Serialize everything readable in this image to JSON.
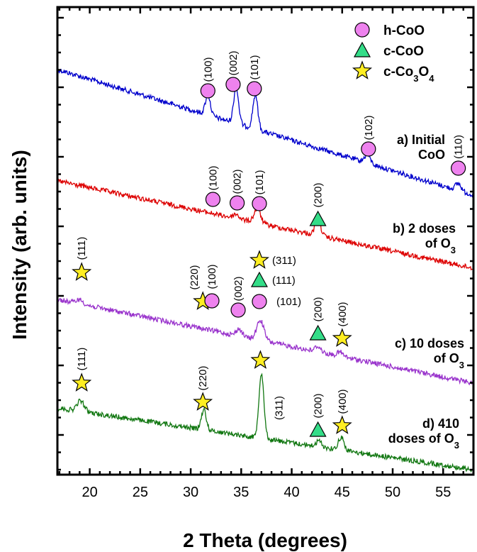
{
  "chart_data": {
    "type": "line",
    "title": "",
    "xlabel": "2 Theta (degrees)",
    "ylabel": "Intensity (arb. units)",
    "xlim": [
      16.8,
      58
    ],
    "x_ticks": [
      20,
      25,
      30,
      35,
      40,
      45,
      50,
      55
    ],
    "y_ticks_visible": false,
    "legend": {
      "position": "top-right",
      "entries": [
        {
          "name": "h-CoO",
          "marker": "circle",
          "color": "#ee82ee"
        },
        {
          "name": "c-CoO",
          "marker": "triangle",
          "color": "#33dd88"
        },
        {
          "name": "c-Co3O4",
          "marker": "star",
          "color": "#ffee22"
        }
      ]
    },
    "series": [
      {
        "name": "a) Initial CoO",
        "label_lines": [
          "a) Initial",
          "CoO"
        ],
        "color": "#0000cc",
        "start_intensity": 98,
        "end_intensity": 275,
        "peaks": [
          {
            "x": 31.7,
            "height": 28,
            "width": 0.35
          },
          {
            "x": 34.5,
            "height": 50,
            "width": 0.35
          },
          {
            "x": 36.4,
            "height": 48,
            "width": 0.35
          },
          {
            "x": 47.5,
            "height": 12,
            "width": 0.4
          },
          {
            "x": 56.5,
            "height": 10,
            "width": 0.4
          }
        ],
        "markers": [
          {
            "type": "circle",
            "x": 31.7,
            "hkl": "(100)"
          },
          {
            "type": "circle",
            "x": 34.2,
            "hkl": "(002)"
          },
          {
            "type": "circle",
            "x": 36.3,
            "hkl": "(101)"
          },
          {
            "type": "circle",
            "x": 47.6,
            "hkl": "(102)"
          },
          {
            "type": "circle",
            "x": 56.5,
            "hkl": "(110)"
          }
        ]
      },
      {
        "name": "b) 2 doses of O3",
        "label_lines": [
          "b) 2 doses",
          "of O3"
        ],
        "color": "#dd0000",
        "start_intensity": 255,
        "end_intensity": 378,
        "peaks": [
          {
            "x": 34.5,
            "height": 6,
            "width": 0.4
          },
          {
            "x": 36.6,
            "height": 20,
            "width": 0.45
          },
          {
            "x": 42.6,
            "height": 22,
            "width": 0.4
          }
        ],
        "markers": [
          {
            "type": "circle",
            "x": 32.2,
            "hkl": "(100)"
          },
          {
            "type": "circle",
            "x": 34.6,
            "hkl": "(002)"
          },
          {
            "type": "circle",
            "x": 36.8,
            "hkl": "(101)"
          },
          {
            "type": "triangle",
            "x": 42.6,
            "hkl": "(200)"
          }
        ]
      },
      {
        "name": "c) 10 doses of O3",
        "label_lines": [
          "c) 10 doses",
          "of O3"
        ],
        "color": "#9933cc",
        "start_intensity": 422,
        "end_intensity": 540,
        "peaks": [
          {
            "x": 19.0,
            "height": 6,
            "width": 0.5
          },
          {
            "x": 34.8,
            "height": 10,
            "width": 0.4
          },
          {
            "x": 36.9,
            "height": 28,
            "width": 0.5
          },
          {
            "x": 42.6,
            "height": 8,
            "width": 0.4
          },
          {
            "x": 44.8,
            "height": 6,
            "width": 0.4
          }
        ],
        "markers": [
          {
            "type": "star",
            "x": 19.2,
            "hkl": "(111)"
          },
          {
            "type": "star",
            "x": 31.2,
            "hkl": "(220)"
          },
          {
            "type": "circle",
            "x": 32.1,
            "hkl": "(100)"
          },
          {
            "type": "circle",
            "x": 34.7,
            "hkl": "(002)"
          },
          {
            "type": "circle",
            "x": 36.8,
            "hkl": "(101)"
          },
          {
            "type": "star",
            "x": 36.8,
            "hkl": "(311)"
          },
          {
            "type": "triangle",
            "x": 36.8,
            "hkl": "(111)"
          },
          {
            "type": "triangle",
            "x": 42.6,
            "hkl": "(200)"
          },
          {
            "type": "star",
            "x": 45.0,
            "hkl": "(400)"
          }
        ]
      },
      {
        "name": "d) 410 doses of O3",
        "label_lines": [
          "d) 410",
          "doses of O3"
        ],
        "color": "#117711",
        "start_intensity": 575,
        "end_intensity": 662,
        "peaks": [
          {
            "x": 19.1,
            "height": 15,
            "width": 0.5
          },
          {
            "x": 31.3,
            "height": 28,
            "width": 0.35
          },
          {
            "x": 37.0,
            "height": 92,
            "width": 0.35
          },
          {
            "x": 42.7,
            "height": 8,
            "width": 0.4
          },
          {
            "x": 44.9,
            "height": 18,
            "width": 0.4
          }
        ],
        "markers": [
          {
            "type": "star",
            "x": 19.2,
            "hkl": "(111)"
          },
          {
            "type": "star",
            "x": 31.2,
            "hkl": "(220)"
          },
          {
            "type": "star",
            "x": 36.9,
            "hkl": "(311)"
          },
          {
            "type": "triangle",
            "x": 42.6,
            "hkl": "(200)"
          },
          {
            "type": "star",
            "x": 45.0,
            "hkl": "(400)"
          }
        ]
      }
    ]
  }
}
